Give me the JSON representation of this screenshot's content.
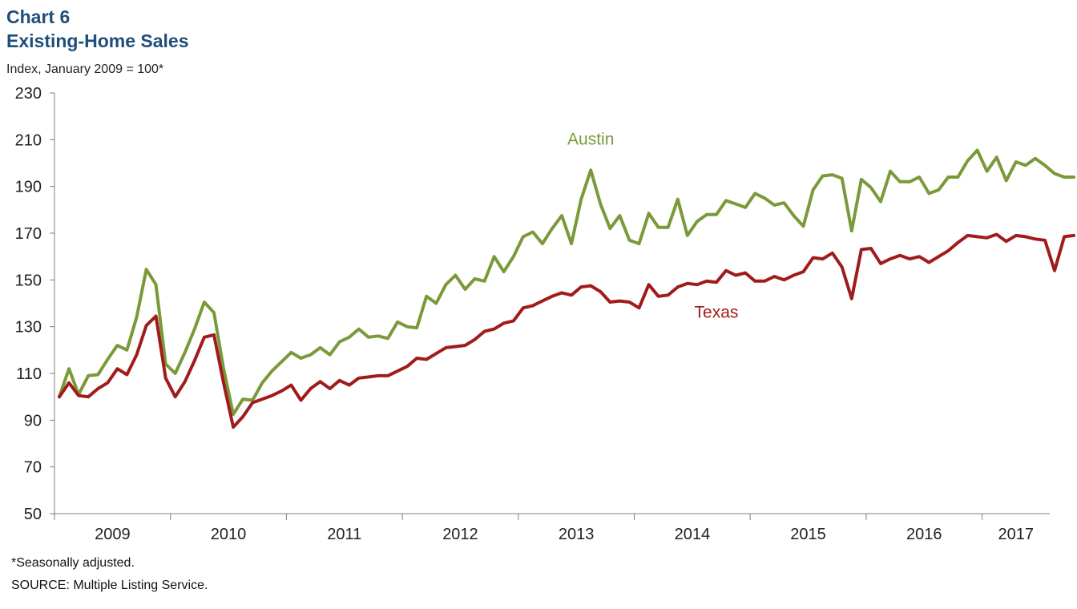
{
  "header": {
    "chart_number": "Chart 6",
    "title": "Existing-Home  Sales",
    "subtitle": "Index, January 2009 = 100*"
  },
  "footer": {
    "footnote": "*Seasonally adjusted.",
    "source": "SOURCE: Multiple Listing Service."
  },
  "colors": {
    "title": "#1f4e79",
    "austin": "#7a9a3a",
    "texas": "#a01c1c",
    "axis": "#7f7f7f"
  },
  "chart_data": {
    "type": "line",
    "ylabel": "Index, January 2009 = 100*",
    "ylim": [
      50,
      230
    ],
    "yticks": [
      50,
      70,
      90,
      110,
      130,
      150,
      170,
      190,
      210,
      230
    ],
    "xticks": [
      "2009",
      "2010",
      "2011",
      "2012",
      "2013",
      "2014",
      "2015",
      "2016",
      "2017"
    ],
    "x_start": "2009-01",
    "x_end": "2017-07",
    "grid": false,
    "legend": "inline labels",
    "series": [
      {
        "name": "Austin",
        "color": "#7a9a3a",
        "label_at": "2013-08",
        "values": [
          100,
          112,
          101,
          109,
          109.5,
          116,
          122,
          120,
          134,
          154.5,
          148,
          114,
          110,
          119,
          129,
          140.5,
          136,
          112,
          92.5,
          99,
          98.5,
          106,
          111,
          115,
          119,
          116.5,
          118,
          121,
          118,
          123.5,
          125.5,
          129,
          125.5,
          126,
          125,
          132,
          130,
          129.5,
          143,
          140,
          148,
          152,
          146,
          150.5,
          149.5,
          160,
          153.5,
          160,
          168.5,
          170.5,
          165.5,
          172,
          177.5,
          165.5,
          184.5,
          197,
          182.5,
          172,
          177.5,
          167,
          165.5,
          178.5,
          172.5,
          172.5,
          184.5,
          169,
          175,
          178,
          178,
          184,
          182.5,
          181,
          187,
          185,
          182,
          183,
          177.5,
          173,
          188.5,
          194.5,
          195,
          193.5,
          171,
          193,
          189.5,
          183.5,
          196.5,
          192,
          192,
          194,
          187,
          188.5,
          194,
          194,
          201,
          205.5,
          196.5,
          202.5,
          192.5,
          200.5,
          199,
          202,
          199,
          195.5,
          194,
          194
        ]
      },
      {
        "name": "Texas",
        "color": "#a01c1c",
        "label_at": "2014-09",
        "values": [
          100,
          106,
          100.5,
          100,
          103.5,
          106,
          112,
          109.5,
          118,
          130.5,
          134.5,
          108,
          100,
          106.5,
          115.5,
          125.5,
          126.5,
          106,
          87,
          91.5,
          97.5,
          99,
          100.5,
          102.5,
          105,
          98.5,
          103.5,
          106.5,
          103.5,
          107,
          105,
          108,
          108.5,
          109,
          109,
          111,
          113,
          116.5,
          116,
          118.5,
          121,
          121.5,
          122,
          124.5,
          128,
          129,
          131.5,
          132.5,
          138,
          139,
          141,
          143,
          144.5,
          143.5,
          147,
          147.5,
          145,
          140.5,
          141,
          140.5,
          138,
          148,
          143,
          143.5,
          147,
          148.5,
          148,
          149.5,
          149,
          154,
          152,
          153,
          149.5,
          149.5,
          151.5,
          150,
          152,
          153.5,
          159.5,
          159,
          161.5,
          155.5,
          142,
          163,
          163.5,
          157,
          159,
          160.5,
          159,
          160,
          157.5,
          160,
          162.5,
          166,
          169,
          168.5,
          168,
          169.5,
          166.5,
          169,
          168.5,
          167.5,
          167,
          154,
          168.5,
          169
        ]
      }
    ]
  }
}
